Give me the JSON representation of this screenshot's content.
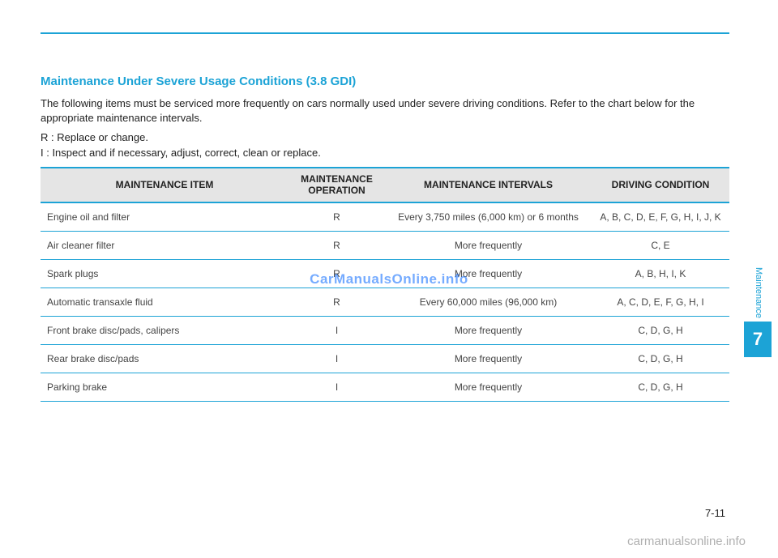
{
  "heading": "Maintenance Under Severe Usage Conditions (3.8 GDI)",
  "intro": "The following items must be serviced more frequently on cars normally used under severe driving conditions. Refer to the chart below for the appropriate maintenance intervals.",
  "legend_r": "R : Replace or change.",
  "legend_i": "I  : Inspect and if necessary, adjust, correct, clean or replace.",
  "table": {
    "headers": {
      "item": "MAINTENANCE ITEM",
      "operation": "MAINTENANCE OPERATION",
      "intervals": "MAINTENANCE INTERVALS",
      "condition": "DRIVING CONDITION"
    },
    "rows": [
      {
        "item": "Engine oil and filter",
        "op": "R",
        "interval": "Every 3,750 miles (6,000 km) or 6 months",
        "cond": "A, B, C, D, E, F, G, H, I, J, K"
      },
      {
        "item": "Air cleaner filter",
        "op": "R",
        "interval": "More frequently",
        "cond": "C, E"
      },
      {
        "item": "Spark plugs",
        "op": "R",
        "interval": "More frequently",
        "cond": "A, B, H, I, K"
      },
      {
        "item": "Automatic transaxle fluid",
        "op": "R",
        "interval": "Every 60,000 miles (96,000 km)",
        "cond": "A, C, D, E, F, G, H, I"
      },
      {
        "item": "Front brake disc/pads, calipers",
        "op": "I",
        "interval": "More frequently",
        "cond": "C, D, G, H"
      },
      {
        "item": "Rear brake disc/pads",
        "op": "I",
        "interval": "More frequently",
        "cond": "C, D, G, H"
      },
      {
        "item": "Parking brake",
        "op": "I",
        "interval": "More frequently",
        "cond": "C, D, G, H"
      }
    ]
  },
  "side": {
    "label": "Maintenance",
    "number": "7"
  },
  "page_number": "7-11",
  "watermark_center": "CarManualsOnline.info",
  "watermark_footer": "carmanualsonline.info",
  "colors": {
    "accent": "#1ca3d6",
    "header_bg": "#e5e5e5",
    "text": "#222222",
    "body_text": "#444444",
    "watermark_blue": "#1a74ff",
    "footer_gray": "#b0b0b0"
  }
}
